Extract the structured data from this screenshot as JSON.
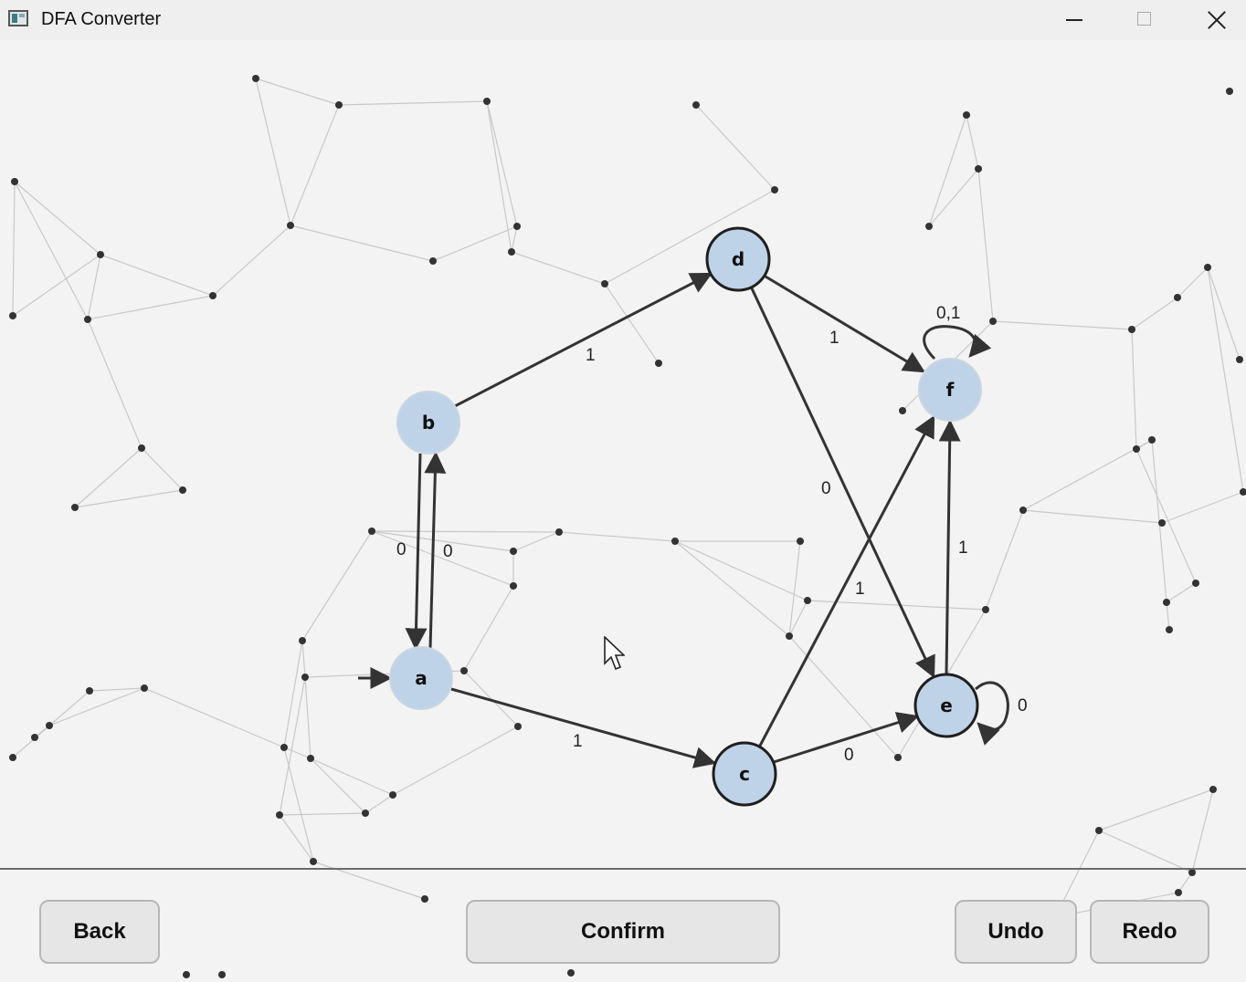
{
  "window": {
    "title": "DFA Converter",
    "icon": "app-window-icon"
  },
  "controls": {
    "minimize": "minimize-icon",
    "maximize": "maximize-icon",
    "close": "close-icon"
  },
  "automaton": {
    "start_state": "a",
    "states": [
      {
        "id": "a",
        "label": "a"
      },
      {
        "id": "b",
        "label": "b"
      },
      {
        "id": "c",
        "label": "c"
      },
      {
        "id": "d",
        "label": "d"
      },
      {
        "id": "e",
        "label": "e"
      },
      {
        "id": "f",
        "label": "f"
      }
    ],
    "transitions": [
      {
        "from": "b",
        "to": "a",
        "label": "0"
      },
      {
        "from": "a",
        "to": "b",
        "label": "0"
      },
      {
        "from": "b",
        "to": "d",
        "label": "1"
      },
      {
        "from": "a",
        "to": "c",
        "label": "1"
      },
      {
        "from": "d",
        "to": "f",
        "label": "1"
      },
      {
        "from": "d",
        "to": "e",
        "label": "0"
      },
      {
        "from": "c",
        "to": "f",
        "label": "1"
      },
      {
        "from": "c",
        "to": "e",
        "label": "0"
      },
      {
        "from": "e",
        "to": "f",
        "label": "1"
      },
      {
        "from": "f",
        "to": "f",
        "label": "0,1"
      },
      {
        "from": "e",
        "to": "e",
        "label": "0"
      }
    ]
  },
  "colors": {
    "state_fill": "#bfd3e8",
    "edge": "#333333",
    "background_network": "#c8c8c8"
  },
  "buttons": {
    "back": "Back",
    "confirm": "Confirm",
    "undo": "Undo",
    "redo": "Redo"
  }
}
